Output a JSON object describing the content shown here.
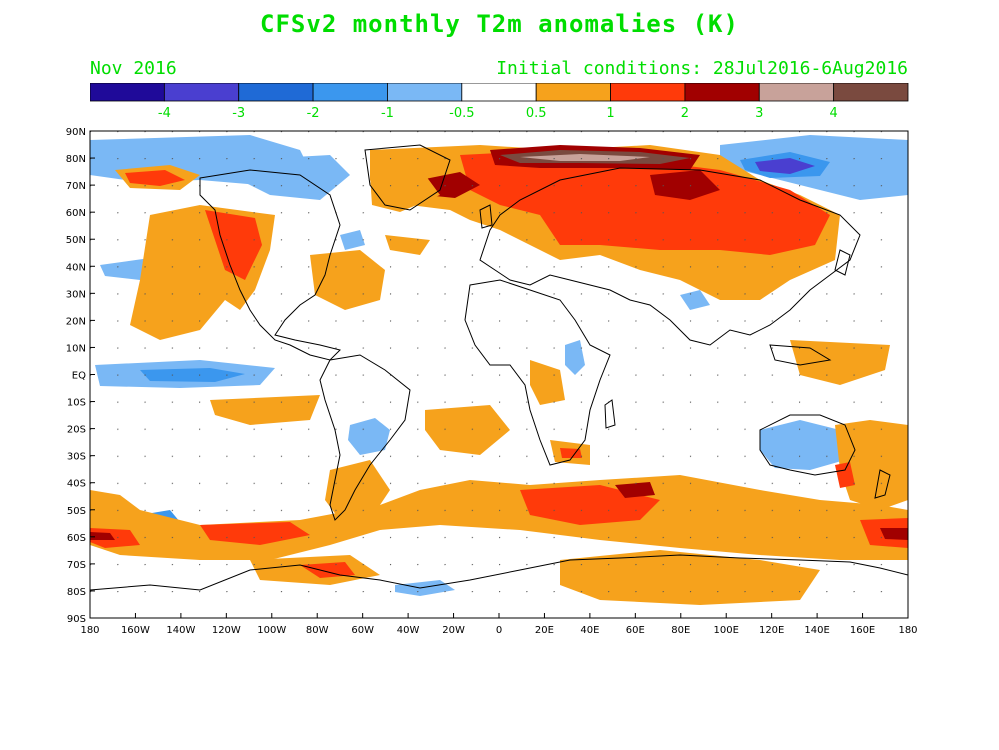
{
  "title": "CFSv2 monthly T2m anomalies (K)",
  "valid_month": "Nov 2016",
  "init_conditions": "Initial conditions: 28Jul2016-6Aug2016",
  "colorbar": {
    "bins": [
      {
        "color": "#1f0a99"
      },
      {
        "color": "#4a3fd0"
      },
      {
        "color": "#1f6ad6"
      },
      {
        "color": "#3b97ee"
      },
      {
        "color": "#7ab8f5"
      },
      {
        "color": "#ffffff"
      },
      {
        "color": "#f6a21c"
      },
      {
        "color": "#ff3a0a"
      },
      {
        "color": "#a10000"
      },
      {
        "color": "#c8a29a"
      },
      {
        "color": "#7a4a3f"
      }
    ],
    "labels": [
      "-4",
      "-3",
      "-2",
      "-1",
      "-0.5",
      "0.5",
      "1",
      "2",
      "3",
      "4"
    ],
    "label_color": "#00dd00"
  },
  "latitude_labels": [
    "90N",
    "80N",
    "70N",
    "60N",
    "50N",
    "40N",
    "30N",
    "20N",
    "10N",
    "EQ",
    "10S",
    "20S",
    "30S",
    "40S",
    "50S",
    "60S",
    "70S",
    "80S",
    "90S"
  ],
  "longitude_labels": [
    "180",
    "160W",
    "140W",
    "120W",
    "100W",
    "80W",
    "60W",
    "40W",
    "20W",
    "0",
    "20E",
    "40E",
    "60E",
    "80E",
    "100E",
    "120E",
    "140E",
    "160E",
    "180"
  ]
}
